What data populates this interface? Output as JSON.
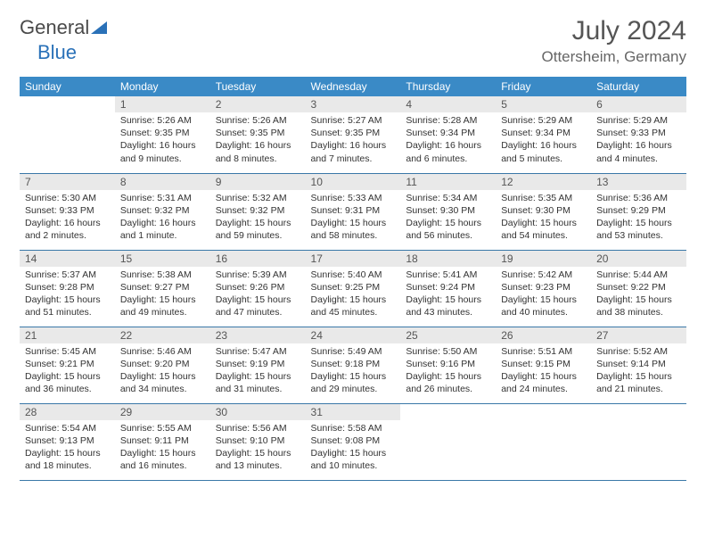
{
  "logo": {
    "part1": "General",
    "part2": "Blue"
  },
  "title": "July 2024",
  "location": "Ottersheim, Germany",
  "header_bg": "#3a8ac6",
  "rule_color": "#3a78a8",
  "daynum_bg": "#e9e9e9",
  "weekdays": [
    "Sunday",
    "Monday",
    "Tuesday",
    "Wednesday",
    "Thursday",
    "Friday",
    "Saturday"
  ],
  "weeks": [
    [
      null,
      {
        "n": "1",
        "sr": "5:26 AM",
        "ss": "9:35 PM",
        "dl": "16 hours and 9 minutes."
      },
      {
        "n": "2",
        "sr": "5:26 AM",
        "ss": "9:35 PM",
        "dl": "16 hours and 8 minutes."
      },
      {
        "n": "3",
        "sr": "5:27 AM",
        "ss": "9:35 PM",
        "dl": "16 hours and 7 minutes."
      },
      {
        "n": "4",
        "sr": "5:28 AM",
        "ss": "9:34 PM",
        "dl": "16 hours and 6 minutes."
      },
      {
        "n": "5",
        "sr": "5:29 AM",
        "ss": "9:34 PM",
        "dl": "16 hours and 5 minutes."
      },
      {
        "n": "6",
        "sr": "5:29 AM",
        "ss": "9:33 PM",
        "dl": "16 hours and 4 minutes."
      }
    ],
    [
      {
        "n": "7",
        "sr": "5:30 AM",
        "ss": "9:33 PM",
        "dl": "16 hours and 2 minutes."
      },
      {
        "n": "8",
        "sr": "5:31 AM",
        "ss": "9:32 PM",
        "dl": "16 hours and 1 minute."
      },
      {
        "n": "9",
        "sr": "5:32 AM",
        "ss": "9:32 PM",
        "dl": "15 hours and 59 minutes."
      },
      {
        "n": "10",
        "sr": "5:33 AM",
        "ss": "9:31 PM",
        "dl": "15 hours and 58 minutes."
      },
      {
        "n": "11",
        "sr": "5:34 AM",
        "ss": "9:30 PM",
        "dl": "15 hours and 56 minutes."
      },
      {
        "n": "12",
        "sr": "5:35 AM",
        "ss": "9:30 PM",
        "dl": "15 hours and 54 minutes."
      },
      {
        "n": "13",
        "sr": "5:36 AM",
        "ss": "9:29 PM",
        "dl": "15 hours and 53 minutes."
      }
    ],
    [
      {
        "n": "14",
        "sr": "5:37 AM",
        "ss": "9:28 PM",
        "dl": "15 hours and 51 minutes."
      },
      {
        "n": "15",
        "sr": "5:38 AM",
        "ss": "9:27 PM",
        "dl": "15 hours and 49 minutes."
      },
      {
        "n": "16",
        "sr": "5:39 AM",
        "ss": "9:26 PM",
        "dl": "15 hours and 47 minutes."
      },
      {
        "n": "17",
        "sr": "5:40 AM",
        "ss": "9:25 PM",
        "dl": "15 hours and 45 minutes."
      },
      {
        "n": "18",
        "sr": "5:41 AM",
        "ss": "9:24 PM",
        "dl": "15 hours and 43 minutes."
      },
      {
        "n": "19",
        "sr": "5:42 AM",
        "ss": "9:23 PM",
        "dl": "15 hours and 40 minutes."
      },
      {
        "n": "20",
        "sr": "5:44 AM",
        "ss": "9:22 PM",
        "dl": "15 hours and 38 minutes."
      }
    ],
    [
      {
        "n": "21",
        "sr": "5:45 AM",
        "ss": "9:21 PM",
        "dl": "15 hours and 36 minutes."
      },
      {
        "n": "22",
        "sr": "5:46 AM",
        "ss": "9:20 PM",
        "dl": "15 hours and 34 minutes."
      },
      {
        "n": "23",
        "sr": "5:47 AM",
        "ss": "9:19 PM",
        "dl": "15 hours and 31 minutes."
      },
      {
        "n": "24",
        "sr": "5:49 AM",
        "ss": "9:18 PM",
        "dl": "15 hours and 29 minutes."
      },
      {
        "n": "25",
        "sr": "5:50 AM",
        "ss": "9:16 PM",
        "dl": "15 hours and 26 minutes."
      },
      {
        "n": "26",
        "sr": "5:51 AM",
        "ss": "9:15 PM",
        "dl": "15 hours and 24 minutes."
      },
      {
        "n": "27",
        "sr": "5:52 AM",
        "ss": "9:14 PM",
        "dl": "15 hours and 21 minutes."
      }
    ],
    [
      {
        "n": "28",
        "sr": "5:54 AM",
        "ss": "9:13 PM",
        "dl": "15 hours and 18 minutes."
      },
      {
        "n": "29",
        "sr": "5:55 AM",
        "ss": "9:11 PM",
        "dl": "15 hours and 16 minutes."
      },
      {
        "n": "30",
        "sr": "5:56 AM",
        "ss": "9:10 PM",
        "dl": "15 hours and 13 minutes."
      },
      {
        "n": "31",
        "sr": "5:58 AM",
        "ss": "9:08 PM",
        "dl": "15 hours and 10 minutes."
      },
      null,
      null,
      null
    ]
  ],
  "labels": {
    "sunrise": "Sunrise:",
    "sunset": "Sunset:",
    "daylight": "Daylight:"
  }
}
